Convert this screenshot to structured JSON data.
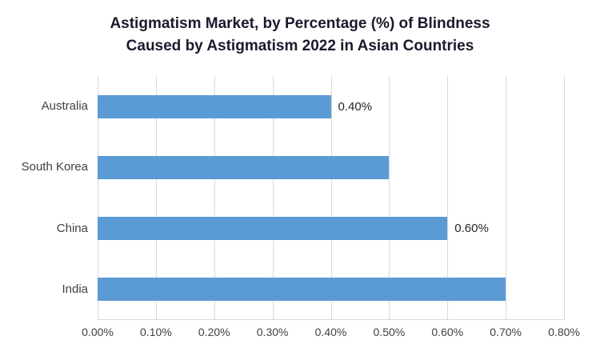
{
  "chart_data": {
    "type": "bar",
    "orientation": "horizontal",
    "title_line1": "Astigmatism Market, by Percentage (%) of Blindness",
    "title_line2": "Caused by Astigmatism 2022 in Asian Countries",
    "categories_top_to_bottom": [
      "Australia",
      "South Korea",
      "China",
      "India"
    ],
    "values_percent": [
      0.4,
      0.5,
      0.6,
      0.7
    ],
    "data_labels": [
      "0.40%",
      null,
      "0.60%",
      null
    ],
    "x_ticks": [
      "0.00%",
      "0.10%",
      "0.20%",
      "0.30%",
      "0.40%",
      "0.50%",
      "0.60%",
      "0.70%",
      "0.80%"
    ],
    "xlim_percent": [
      0,
      0.8
    ],
    "bar_color": "#5B9BD5",
    "gridline_color": "#D9D9D9",
    "grid": "vertical",
    "legend_position": "none"
  }
}
